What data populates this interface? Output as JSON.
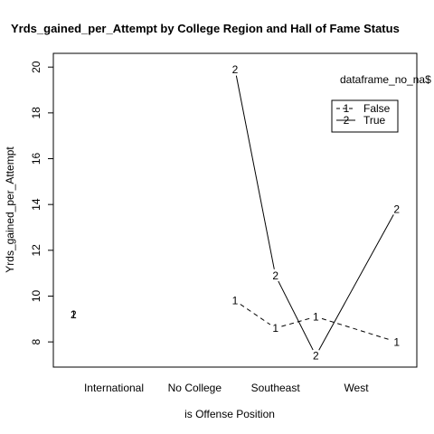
{
  "chart_data": {
    "type": "line",
    "title": "Yrds_gained_per_Attempt by College Region and Hall of Fame Status",
    "xlabel": "is Offense Position",
    "ylabel": "Yrds_gained_per_Attempt",
    "categories": [
      "International",
      "No College",
      "Southeast",
      "West"
    ],
    "x_positions": [
      1,
      2,
      3,
      3.5,
      4,
      5
    ],
    "x_range": [
      0.75,
      5.25
    ],
    "ylim": [
      6.9,
      20.6
    ],
    "yticks": [
      8,
      10,
      12,
      14,
      16,
      18,
      20
    ],
    "grid": false,
    "legend": {
      "title": "dataframe_no_na$",
      "placement": "right",
      "entries": [
        {
          "marker": "1",
          "label": "False",
          "linestyle": "dashed"
        },
        {
          "marker": "2",
          "label": "True",
          "linestyle": "solid"
        }
      ]
    },
    "series": [
      {
        "name": "False",
        "marker": "1",
        "linestyle": "dashed",
        "x": [
          1,
          2,
          3,
          3.5,
          4,
          5
        ],
        "values": [
          9.2,
          null,
          9.8,
          8.6,
          9.1,
          8.0
        ]
      },
      {
        "name": "True",
        "marker": "2",
        "linestyle": "solid",
        "x": [
          1,
          2,
          3,
          3.5,
          4,
          5
        ],
        "values": [
          9.2,
          null,
          19.9,
          10.9,
          7.4,
          13.8
        ]
      }
    ],
    "category_x": [
      1.5,
      2.5,
      3.5,
      4.5
    ]
  }
}
